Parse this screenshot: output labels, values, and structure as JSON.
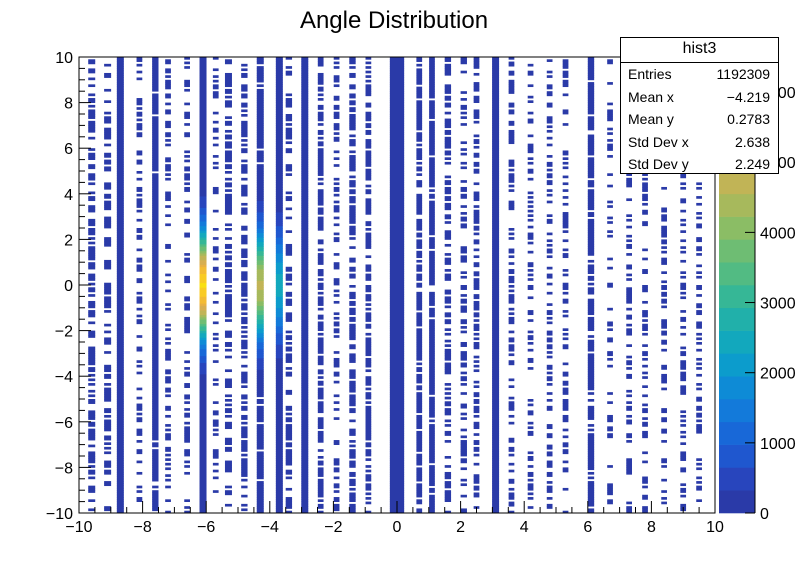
{
  "chart_data": {
    "type": "heatmap",
    "title": "Angle Distribution",
    "xlabel": "",
    "ylabel": "",
    "xlim": [
      -10,
      10
    ],
    "ylim": [
      -10,
      10
    ],
    "x_ticks": [
      -10,
      -8,
      -6,
      -4,
      -2,
      0,
      2,
      4,
      6,
      8,
      10
    ],
    "y_ticks": [
      -10,
      -8,
      -6,
      -4,
      -2,
      0,
      2,
      4,
      6,
      8,
      10
    ],
    "x_tick_labels": [
      "−10",
      "−8",
      "−6",
      "−4",
      "−2",
      "0",
      "2",
      "4",
      "6",
      "8",
      "10"
    ],
    "y_tick_labels": [
      "−10",
      "−8",
      "−6",
      "−4",
      "−2",
      "0",
      "2",
      "4",
      "6",
      "8",
      "10"
    ],
    "z_range": [
      0,
      6500
    ],
    "z_ticks": [
      0,
      1000,
      2000,
      3000,
      4000,
      5000,
      6000
    ],
    "z_tick_labels": [
      "0",
      "1000",
      "2000",
      "3000",
      "4000",
      "5000",
      "6000"
    ],
    "palette": [
      "#2a3aa8",
      "#2845bd",
      "#1f57cf",
      "#1868d8",
      "#137ada",
      "#0e8bd6",
      "#0c9ccc",
      "#12a8bd",
      "#21b0aa",
      "#36b796",
      "#52bb83",
      "#6ebd73",
      "#8bbd65",
      "#a7b95c",
      "#c1b456",
      "#d7ae51",
      "#e8b043",
      "#f3bb34",
      "#f9cb24",
      "#f9e011"
    ],
    "columns": [
      {
        "x": -9.6,
        "w": 0.22,
        "density": 0.6
      },
      {
        "x": -9.1,
        "w": 0.22,
        "density": 0.45
      },
      {
        "x": -8.7,
        "w": 0.22,
        "density": 1.0
      },
      {
        "x": -8.1,
        "w": 0.18,
        "density": 0.35
      },
      {
        "x": -7.6,
        "w": 0.2,
        "density": 0.95
      },
      {
        "x": -7.2,
        "w": 0.18,
        "density": 0.4
      },
      {
        "x": -6.6,
        "w": 0.18,
        "density": 0.4
      },
      {
        "x": -6.1,
        "w": 0.22,
        "density": 1.0,
        "peak": 6200
      },
      {
        "x": -5.7,
        "w": 0.18,
        "density": 0.3
      },
      {
        "x": -5.3,
        "w": 0.22,
        "density": 0.55
      },
      {
        "x": -4.8,
        "w": 0.2,
        "density": 0.6
      },
      {
        "x": -4.3,
        "w": 0.22,
        "density": 0.95,
        "peak": 4600
      },
      {
        "x": -3.7,
        "w": 0.22,
        "density": 1.0,
        "peak": 2400
      },
      {
        "x": -3.4,
        "w": 0.2,
        "density": 0.5
      },
      {
        "x": -2.9,
        "w": 0.22,
        "density": 1.0
      },
      {
        "x": -2.4,
        "w": 0.18,
        "density": 0.7
      },
      {
        "x": -1.9,
        "w": 0.18,
        "density": 0.4
      },
      {
        "x": -1.4,
        "w": 0.2,
        "density": 0.65
      },
      {
        "x": -0.9,
        "w": 0.18,
        "density": 0.6
      },
      {
        "x": 0.0,
        "w": 0.45,
        "density": 1.0
      },
      {
        "x": 0.7,
        "w": 0.18,
        "density": 0.75
      },
      {
        "x": 1.1,
        "w": 0.18,
        "density": 0.85
      },
      {
        "x": 1.6,
        "w": 0.2,
        "density": 0.5
      },
      {
        "x": 2.1,
        "w": 0.2,
        "density": 0.45
      },
      {
        "x": 2.5,
        "w": 0.18,
        "density": 0.55
      },
      {
        "x": 3.1,
        "w": 0.22,
        "density": 1.0
      },
      {
        "x": 3.6,
        "w": 0.18,
        "density": 0.45
      },
      {
        "x": 4.2,
        "w": 0.18,
        "density": 0.35
      },
      {
        "x": 4.8,
        "w": 0.18,
        "density": 0.45
      },
      {
        "x": 5.3,
        "w": 0.18,
        "density": 0.4
      },
      {
        "x": 6.1,
        "w": 0.2,
        "density": 0.85
      },
      {
        "x": 6.7,
        "w": 0.18,
        "density": 0.3
      },
      {
        "x": 7.3,
        "w": 0.18,
        "density": 0.35
      },
      {
        "x": 7.8,
        "w": 0.18,
        "density": 0.45
      },
      {
        "x": 8.4,
        "w": 0.18,
        "density": 0.35
      },
      {
        "x": 9.0,
        "w": 0.18,
        "density": 0.4
      },
      {
        "x": 9.5,
        "w": 0.18,
        "density": 0.35
      }
    ],
    "stats_box": {
      "name": "hist3",
      "rows": [
        {
          "label": "Entries",
          "value": "1192309"
        },
        {
          "label": "Mean x",
          "value": "−4.219"
        },
        {
          "label": "Mean y",
          "value": "0.2783"
        },
        {
          "label": "Std Dev x",
          "value": "2.638"
        },
        {
          "label": "Std Dev y",
          "value": "2.249"
        }
      ]
    }
  }
}
